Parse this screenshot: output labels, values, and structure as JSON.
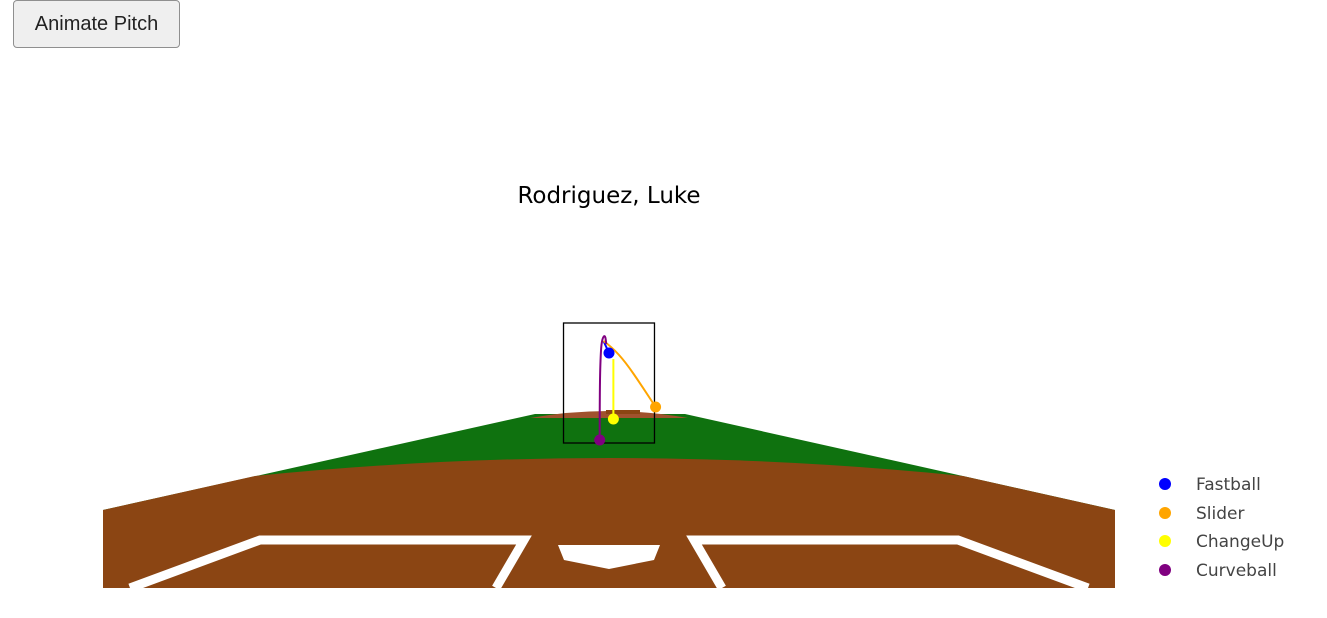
{
  "controls": {
    "animate_label": "Animate Pitch"
  },
  "colors": {
    "grass": "#0f720f",
    "dirt": "#8b4513",
    "mound": "#a0522d",
    "chalk": "#ffffff",
    "zone_border": "#000000"
  },
  "chart_data": {
    "type": "scatter",
    "title": "Rodriguez, Luke",
    "xlabel": "",
    "ylabel": "",
    "grid": false,
    "legend_position": "right",
    "strike_zone": {
      "x": [
        -0.83,
        0.83
      ],
      "y": [
        1.5,
        3.5
      ]
    },
    "series": [
      {
        "name": "Fastball",
        "color": "#0000ff",
        "x": 0.0,
        "y": 3.0,
        "path": [
          [
            -0.1,
            3.2
          ],
          [
            0.0,
            3.0
          ]
        ]
      },
      {
        "name": "Slider",
        "color": "#ffa500",
        "x": 0.85,
        "y": 2.1,
        "path": [
          [
            -0.1,
            3.2
          ],
          [
            0.05,
            3.1
          ],
          [
            0.3,
            2.85
          ],
          [
            0.6,
            2.45
          ],
          [
            0.85,
            2.1
          ]
        ]
      },
      {
        "name": "ChangeUp",
        "color": "#ffff00",
        "x": 0.08,
        "y": 1.9,
        "path": [
          [
            0.08,
            2.9
          ],
          [
            0.08,
            2.4
          ],
          [
            0.08,
            2.1
          ],
          [
            0.08,
            1.9
          ]
        ]
      },
      {
        "name": "Curveball",
        "color": "#800080",
        "x": -0.17,
        "y": 1.55,
        "path": [
          [
            -0.17,
            1.55
          ],
          [
            -0.17,
            2.4
          ],
          [
            -0.15,
            3.05
          ],
          [
            -0.12,
            3.25
          ],
          [
            -0.07,
            3.3
          ],
          [
            -0.05,
            3.15
          ]
        ]
      }
    ]
  }
}
